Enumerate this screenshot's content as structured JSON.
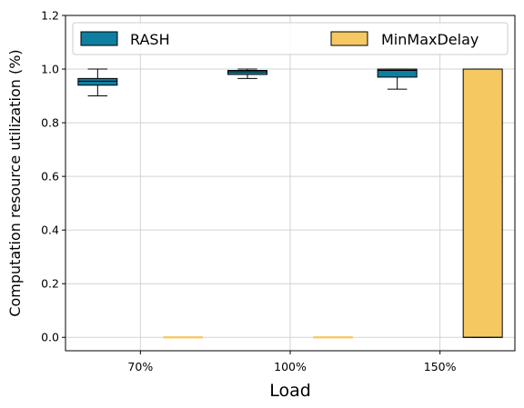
{
  "chart_data": {
    "type": "box",
    "title": "",
    "xlabel": "Load",
    "ylabel": "Computation resource utilization (%)",
    "categories": [
      "70%",
      "100%",
      "150%"
    ],
    "ylim": [
      -0.05,
      1.2
    ],
    "yticks": [
      0.0,
      0.2,
      0.4,
      0.6,
      0.8,
      1.0,
      1.2
    ],
    "grid": true,
    "legend_position": "top",
    "series": [
      {
        "name": "RASH",
        "color": "#0e7fa0",
        "boxes": [
          {
            "whisker_low": 0.9,
            "q1": 0.94,
            "median": 0.955,
            "q3": 0.965,
            "whisker_high": 1.0
          },
          {
            "whisker_low": 0.965,
            "q1": 0.98,
            "median": 0.99,
            "q3": 0.995,
            "whisker_high": 1.0
          },
          {
            "whisker_low": 0.925,
            "q1": 0.97,
            "median": 0.995,
            "q3": 1.0,
            "whisker_high": 1.0
          }
        ]
      },
      {
        "name": "MinMaxDelay",
        "color": "#f6c862",
        "boxes": [
          {
            "whisker_low": 0.0,
            "q1": 0.0,
            "median": 0.0,
            "q3": 0.0,
            "whisker_high": 0.0
          },
          {
            "whisker_low": 0.0,
            "q1": 0.0,
            "median": 0.0,
            "q3": 0.0,
            "whisker_high": 0.0
          },
          {
            "whisker_low": 0.0,
            "q1": 0.0,
            "median": 0.0,
            "q3": 1.0,
            "whisker_high": 1.0
          }
        ]
      }
    ]
  }
}
